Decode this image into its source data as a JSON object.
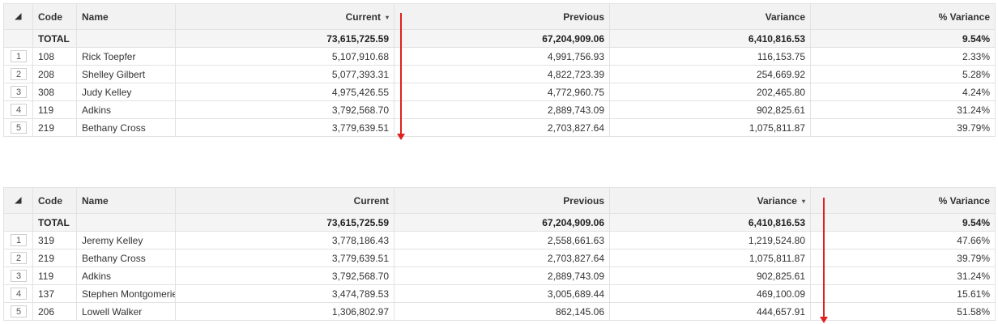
{
  "grid1": {
    "headers": {
      "code": "Code",
      "name": "Name",
      "current": "Current",
      "previous": "Previous",
      "variance": "Variance",
      "pct": "% Variance"
    },
    "sort_caret": "▾",
    "total": {
      "label": "TOTAL",
      "current": "73,615,725.59",
      "previous": "67,204,909.06",
      "variance": "6,410,816.53",
      "pct": "9.54%"
    },
    "rows": [
      {
        "n": "1",
        "code": "108",
        "name": "Rick Toepfer",
        "current": "5,107,910.68",
        "previous": "4,991,756.93",
        "variance": "116,153.75",
        "pct": "2.33%"
      },
      {
        "n": "2",
        "code": "208",
        "name": "Shelley Gilbert",
        "current": "5,077,393.31",
        "previous": "4,822,723.39",
        "variance": "254,669.92",
        "pct": "5.28%"
      },
      {
        "n": "3",
        "code": "308",
        "name": "Judy Kelley",
        "current": "4,975,426.55",
        "previous": "4,772,960.75",
        "variance": "202,465.80",
        "pct": "4.24%"
      },
      {
        "n": "4",
        "code": "119",
        "name": "Adkins",
        "current": "3,792,568.70",
        "previous": "2,889,743.09",
        "variance": "902,825.61",
        "pct": "31.24%"
      },
      {
        "n": "5",
        "code": "219",
        "name": "Bethany Cross",
        "current": "3,779,639.51",
        "previous": "2,703,827.64",
        "variance": "1,075,811.87",
        "pct": "39.79%"
      }
    ]
  },
  "grid2": {
    "headers": {
      "code": "Code",
      "name": "Name",
      "current": "Current",
      "previous": "Previous",
      "variance": "Variance",
      "pct": "% Variance"
    },
    "sort_caret": "▾",
    "total": {
      "label": "TOTAL",
      "current": "73,615,725.59",
      "previous": "67,204,909.06",
      "variance": "6,410,816.53",
      "pct": "9.54%"
    },
    "rows": [
      {
        "n": "1",
        "code": "319",
        "name": "Jeremy Kelley",
        "current": "3,778,186.43",
        "previous": "2,558,661.63",
        "variance": "1,219,524.80",
        "pct": "47.66%"
      },
      {
        "n": "2",
        "code": "219",
        "name": "Bethany Cross",
        "current": "3,779,639.51",
        "previous": "2,703,827.64",
        "variance": "1,075,811.87",
        "pct": "39.79%"
      },
      {
        "n": "3",
        "code": "119",
        "name": "Adkins",
        "current": "3,792,568.70",
        "previous": "2,889,743.09",
        "variance": "902,825.61",
        "pct": "31.24%"
      },
      {
        "n": "4",
        "code": "137",
        "name": "Stephen Montgomerie",
        "current": "3,474,789.53",
        "previous": "3,005,689.44",
        "variance": "469,100.09",
        "pct": "15.61%"
      },
      {
        "n": "5",
        "code": "206",
        "name": "Lowell Walker",
        "current": "1,306,802.97",
        "previous": "862,145.06",
        "variance": "444,657.91",
        "pct": "51.58%"
      }
    ]
  },
  "colors": {
    "arrow": "#e02020",
    "header_bg": "#f2f2f2",
    "border": "#e2e2e2"
  },
  "icons": {
    "corner": "triangle-icon",
    "sort": "sort-caret-icon",
    "annotation": "red-down-arrow"
  }
}
